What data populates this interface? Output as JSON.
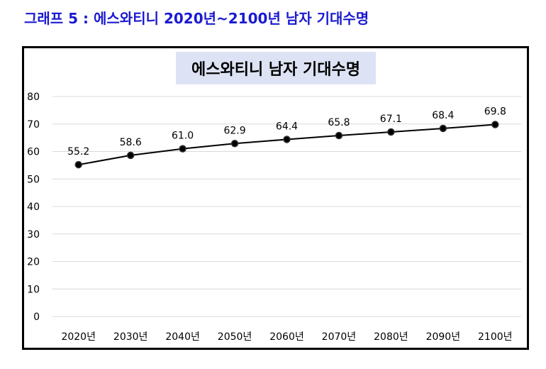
{
  "heading": "그래프 5 : 에스와티니 2020년~2100년 남자 기대수명",
  "colors": {
    "heading": "#1a1ad0",
    "title_bg": "#dde3f4",
    "line": "#000000",
    "grid": "#d9d9d9"
  },
  "chart_data": {
    "type": "line",
    "title": "에스와티니 남자 기대수명",
    "categories": [
      "2020년",
      "2030년",
      "2040년",
      "2050년",
      "2060년",
      "2070년",
      "2080년",
      "2090년",
      "2100년"
    ],
    "series": [
      {
        "values": [
          55.2,
          58.6,
          61.0,
          62.9,
          64.4,
          65.8,
          67.1,
          68.4,
          69.8
        ]
      }
    ],
    "data_labels": [
      "55.2",
      "58.6",
      "61.0",
      "62.9",
      "64.4",
      "65.8",
      "67.1",
      "68.4",
      "69.8"
    ],
    "ylim": [
      0,
      80
    ],
    "yticks": [
      0,
      10,
      20,
      30,
      40,
      50,
      60,
      70,
      80
    ],
    "grid": true,
    "legend": "none"
  }
}
